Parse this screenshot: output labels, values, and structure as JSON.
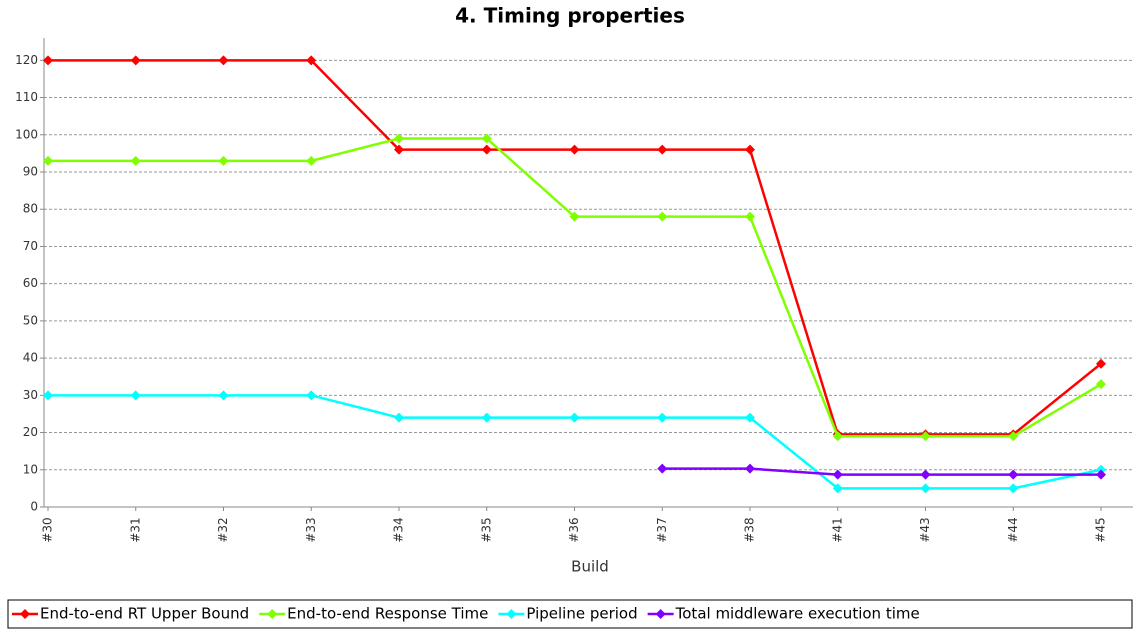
{
  "chart_data": {
    "type": "line",
    "title": "4. Timing properties",
    "x_label": "Build",
    "categories": [
      "#30",
      "#31",
      "#32",
      "#33",
      "#34",
      "#35",
      "#36",
      "#37",
      "#38",
      "#41",
      "#43",
      "#44",
      "#45"
    ],
    "series": [
      {
        "name": "End-to-end RT Upper Bound",
        "color": "#ff0000",
        "values": [
          120,
          120,
          120,
          120,
          96,
          96,
          96,
          96,
          96,
          19.5,
          19.5,
          19.5,
          38.5
        ]
      },
      {
        "name": "End-to-end Response Time",
        "color": "#7fff00",
        "values": [
          93,
          93,
          93,
          93,
          99,
          99,
          78,
          78,
          78,
          19,
          19,
          19,
          33
        ]
      },
      {
        "name": "Pipeline period",
        "color": "#00ffff",
        "values": [
          30,
          30,
          30,
          30,
          24,
          24,
          24,
          24,
          24,
          5,
          5,
          5,
          10
        ]
      },
      {
        "name": "Total middleware execution time",
        "color": "#8000ff",
        "values": [
          null,
          null,
          null,
          null,
          null,
          null,
          null,
          10.3,
          10.3,
          8.7,
          8.7,
          8.7,
          8.7
        ]
      }
    ],
    "ylim": [
      0,
      126
    ],
    "yticks": [
      0,
      10,
      20,
      30,
      40,
      50,
      60,
      70,
      80,
      90,
      100,
      110,
      120
    ],
    "grid": true,
    "legend": "bottom"
  }
}
